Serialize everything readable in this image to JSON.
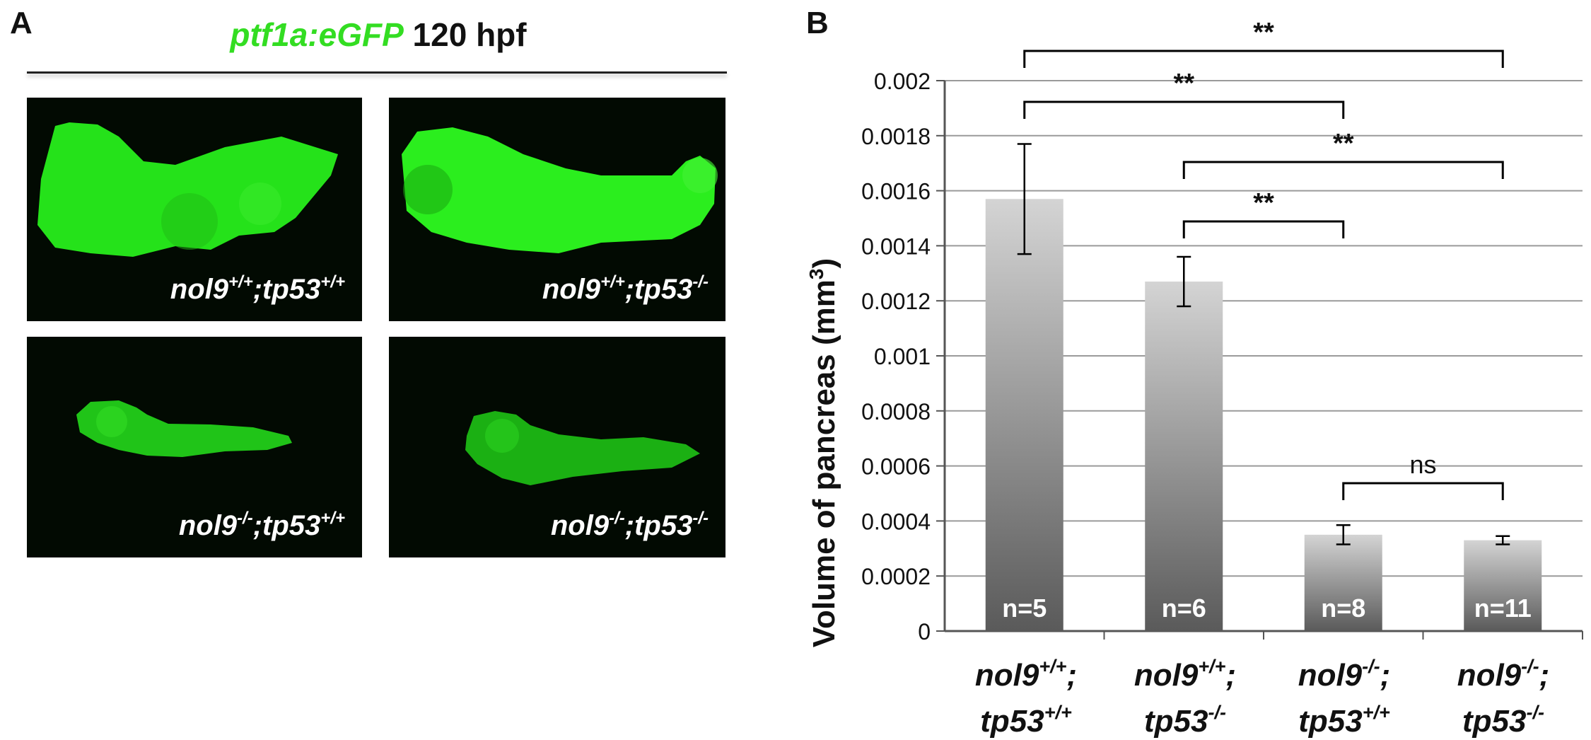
{
  "panel_a": {
    "letter": "A",
    "title_gfp": "ptf1a:eGFP",
    "title_rest": " 120 hpf",
    "images": [
      {
        "gene1": "nol9",
        "sup1": "+/+",
        "sep": ";",
        "gene2": "tp53",
        "sup2": "+/+"
      },
      {
        "gene1": "nol9",
        "sup1": "+/+",
        "sep": ";",
        "gene2": "tp53",
        "sup2": "-/-"
      },
      {
        "gene1": "nol9",
        "sup1": "-/-",
        "sep": ";",
        "gene2": "tp53",
        "sup2": "+/+"
      },
      {
        "gene1": "nol9",
        "sup1": "-/-",
        "sep": ";",
        "gene2": "tp53",
        "sup2": "-/-"
      }
    ]
  },
  "panel_b": {
    "letter": "B",
    "categories": [
      {
        "line1": "nol9",
        "sup1": "+/+",
        "semi": ";",
        "line2": "tp53",
        "sup2": "+/+"
      },
      {
        "line1": "nol9",
        "sup1": "+/+",
        "semi": ";",
        "line2": "tp53",
        "sup2": "-/-"
      },
      {
        "line1": "nol9",
        "sup1": "-/-",
        "semi": ";",
        "line2": "tp53",
        "sup2": "+/+"
      },
      {
        "line1": "nol9",
        "sup1": "-/-",
        "semi": ";",
        "line2": "tp53",
        "sup2": "-/-"
      }
    ]
  },
  "colors": {
    "gfp_green": "#33dd22",
    "bar_top": "#d4d4d4",
    "bar_bottom": "#5a5a5a",
    "grid": "#9a9a9a"
  },
  "chart_data": {
    "type": "bar",
    "ylabel": "Volume of pancreas (mm",
    "ylabel_sup": "3",
    "ylabel_end": ")",
    "ylim": [
      0,
      0.002
    ],
    "yticks": [
      "0",
      "0.0002",
      "0.0004",
      "0.0006",
      "0.0008",
      "0.001",
      "0.0012",
      "0.0014",
      "0.0016",
      "0.0018",
      "0.002"
    ],
    "grid": true,
    "values": [
      0.00157,
      0.00127,
      0.00035,
      0.00033
    ],
    "error": [
      0.0002,
      9e-05,
      3.5e-05,
      1.5e-05
    ],
    "n_labels": [
      "n=5",
      "n=6",
      "n=8",
      "n=11"
    ],
    "comparisons": [
      {
        "from": 0,
        "to": 3,
        "label": "**"
      },
      {
        "from": 0,
        "to": 2,
        "label": "**"
      },
      {
        "from": 1,
        "to": 3,
        "label": "**"
      },
      {
        "from": 1,
        "to": 2,
        "label": "**"
      },
      {
        "from": 2,
        "to": 3,
        "label": "ns"
      }
    ]
  }
}
